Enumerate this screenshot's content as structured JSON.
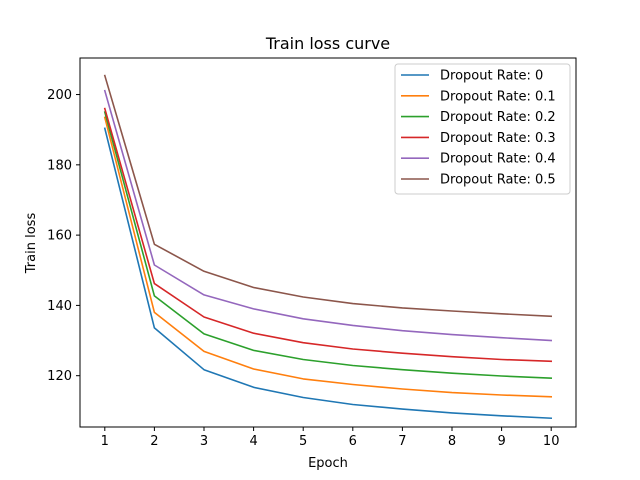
{
  "chart_data": {
    "type": "line",
    "title": "Train loss curve",
    "xlabel": "Epoch",
    "ylabel": "Train loss",
    "x": [
      1,
      2,
      3,
      4,
      5,
      6,
      7,
      8,
      9,
      10
    ],
    "xticks": [
      "1",
      "2",
      "3",
      "4",
      "5",
      "6",
      "7",
      "8",
      "9",
      "10"
    ],
    "yticks": [
      120,
      140,
      160,
      180,
      200
    ],
    "ytick_labels": [
      "120",
      "140",
      "160",
      "180",
      "200"
    ],
    "xlim": [
      0.5,
      10.5
    ],
    "ylim": [
      105.4,
      210.4
    ],
    "grid": false,
    "legend_position": "top-right",
    "series": [
      {
        "name": "Dropout Rate: 0",
        "color": "#1f77b4",
        "values": [
          190.4,
          133.6,
          121.7,
          116.7,
          113.8,
          111.8,
          110.5,
          109.4,
          108.6,
          107.9
        ]
      },
      {
        "name": "Dropout Rate: 0.1",
        "color": "#ff7f0e",
        "values": [
          193.5,
          138.0,
          126.9,
          121.9,
          119.1,
          117.5,
          116.2,
          115.2,
          114.5,
          114.0
        ]
      },
      {
        "name": "Dropout Rate: 0.2",
        "color": "#2ca02c",
        "values": [
          195.0,
          142.7,
          131.9,
          127.2,
          124.6,
          122.9,
          121.7,
          120.7,
          119.9,
          119.3
        ]
      },
      {
        "name": "Dropout Rate: 0.3",
        "color": "#d62728",
        "values": [
          196.0,
          146.2,
          136.7,
          132.1,
          129.4,
          127.6,
          126.4,
          125.4,
          124.6,
          124.1
        ]
      },
      {
        "name": "Dropout Rate: 0.4",
        "color": "#9467bd",
        "values": [
          201.1,
          151.5,
          143.0,
          139.0,
          136.2,
          134.3,
          132.8,
          131.7,
          130.8,
          130.0
        ]
      },
      {
        "name": "Dropout Rate: 0.5",
        "color": "#8c564b",
        "values": [
          205.4,
          157.4,
          149.7,
          145.1,
          142.4,
          140.5,
          139.3,
          138.4,
          137.6,
          136.9
        ]
      }
    ]
  }
}
